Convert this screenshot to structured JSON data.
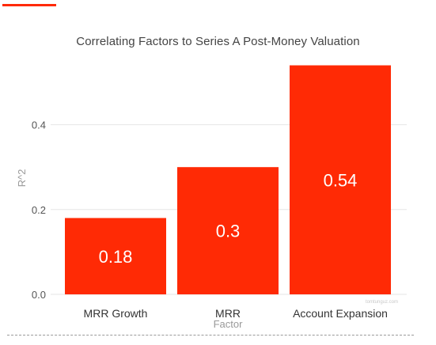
{
  "colors": {
    "accent": "#ff2a05",
    "bar": "#ff2a05",
    "grid": "#e6e6e6"
  },
  "chart_data": {
    "type": "bar",
    "title": "Correlating Factors to Series A Post-Money Valuation",
    "xlabel": "Factor",
    "ylabel": "R^2",
    "categories": [
      "MRR Growth",
      "MRR",
      "Account Expansion"
    ],
    "values": [
      0.18,
      0.3,
      0.54
    ],
    "value_labels": [
      "0.18",
      "0.3",
      "0.54"
    ],
    "yticks": [
      0.0,
      0.2,
      0.4
    ],
    "ytick_labels": [
      "0.0",
      "0.2",
      "0.4"
    ],
    "ylim": [
      0,
      0.55
    ],
    "grid": true,
    "legend": "none",
    "watermark": "tomtunguz.com"
  }
}
